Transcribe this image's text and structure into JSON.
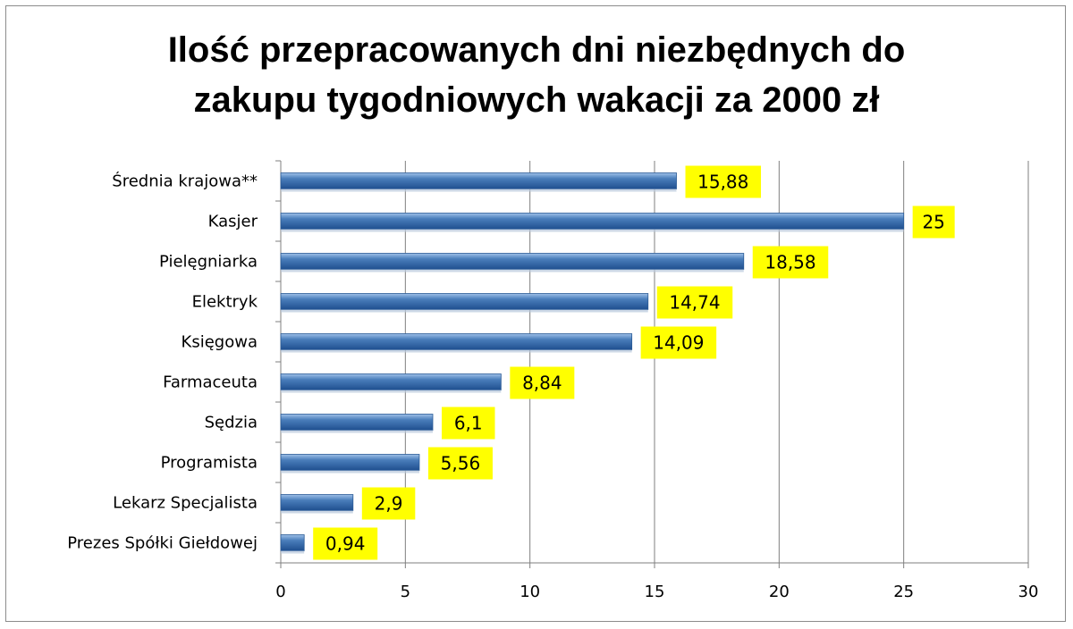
{
  "chart_data": {
    "type": "bar",
    "orientation": "horizontal",
    "title_lines": [
      "Ilość przepracowanych dni niezbędnych do",
      "zakupu tygodniowych wakacji za 2000 zł"
    ],
    "categories": [
      "Średnia krajowa**",
      "Kasjer",
      "Pielęgniarka",
      "Elektryk",
      "Księgowa",
      "Farmaceuta",
      "Sędzia",
      "Programista",
      "Lekarz Specjalista",
      "Prezes Spółki Giełdowej"
    ],
    "values": [
      15.88,
      25,
      18.58,
      14.74,
      14.09,
      8.84,
      6.1,
      5.56,
      2.9,
      0.94
    ],
    "data_labels": [
      "15,88",
      "25",
      "18,58",
      "14,74",
      "14,09",
      "8,84",
      "6,1",
      "5,56",
      "2,9",
      "0,94"
    ],
    "xlim": [
      0,
      30
    ],
    "x_ticks": [
      0,
      5,
      10,
      15,
      20,
      25,
      30
    ],
    "xlabel": "",
    "ylabel": "",
    "grid": true,
    "legend": "none",
    "colors": {
      "bar": "#4a7ebb",
      "bar_light": "#9fc0e8",
      "bar_dark": "#1f4f8f",
      "label_bg": "#ffff00",
      "grid": "#7f7f7f"
    }
  }
}
